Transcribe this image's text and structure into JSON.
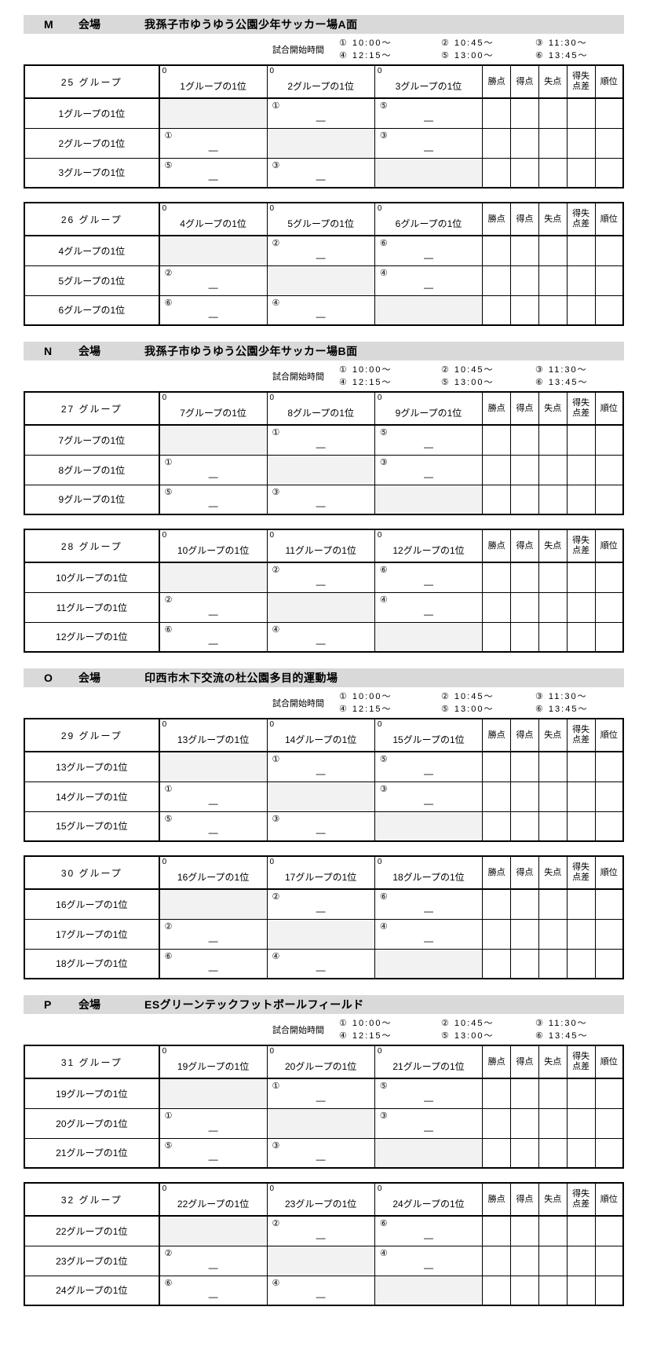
{
  "colors": {
    "bar_bg": "#d9d9d9",
    "diag_bg": "#f2f2f2",
    "border": "#000000"
  },
  "venue_label": "会場",
  "zero": "0",
  "dash": "—",
  "schedule": {
    "label": "試合開始時間",
    "rows": [
      [
        "① 10:00～",
        "② 10:45～",
        "③ 11:30～"
      ],
      [
        "④ 12:15～",
        "⑤ 13:00～",
        "⑥ 13:45～"
      ]
    ]
  },
  "stat_cols": [
    {
      "l1": "勝点",
      "l2": ""
    },
    {
      "l1": "得点",
      "l2": ""
    },
    {
      "l1": "失点",
      "l2": ""
    },
    {
      "l1": "得失",
      "l2": "点差"
    },
    {
      "l1": "順位",
      "l2": ""
    }
  ],
  "sections": [
    {
      "letter": "M",
      "venue": "我孫子市ゆうゆう公園少年サッカー場A面",
      "tables": [
        {
          "name": "25 グループ",
          "teams": [
            "1グループの1位",
            "2グループの1位",
            "3グループの1位"
          ],
          "matches": [
            [
              null,
              "①",
              "⑤"
            ],
            [
              "①",
              null,
              "③"
            ],
            [
              "⑤",
              "③",
              null
            ]
          ]
        },
        {
          "name": "26 グループ",
          "teams": [
            "4グループの1位",
            "5グループの1位",
            "6グループの1位"
          ],
          "matches": [
            [
              null,
              "②",
              "⑥"
            ],
            [
              "②",
              null,
              "④"
            ],
            [
              "⑥",
              "④",
              null
            ]
          ]
        }
      ]
    },
    {
      "letter": "N",
      "venue": "我孫子市ゆうゆう公園少年サッカー場B面",
      "tables": [
        {
          "name": "27 グループ",
          "teams": [
            "7グループの1位",
            "8グループの1位",
            "9グループの1位"
          ],
          "matches": [
            [
              null,
              "①",
              "⑤"
            ],
            [
              "①",
              null,
              "③"
            ],
            [
              "⑤",
              "③",
              null
            ]
          ]
        },
        {
          "name": "28 グループ",
          "teams": [
            "10グループの1位",
            "11グループの1位",
            "12グループの1位"
          ],
          "matches": [
            [
              null,
              "②",
              "⑥"
            ],
            [
              "②",
              null,
              "④"
            ],
            [
              "⑥",
              "④",
              null
            ]
          ]
        }
      ]
    },
    {
      "letter": "O",
      "venue": "印西市木下交流の杜公園多目的運動場",
      "tables": [
        {
          "name": "29 グループ",
          "teams": [
            "13グループの1位",
            "14グループの1位",
            "15グループの1位"
          ],
          "matches": [
            [
              null,
              "①",
              "⑤"
            ],
            [
              "①",
              null,
              "③"
            ],
            [
              "⑤",
              "③",
              null
            ]
          ]
        },
        {
          "name": "30 グループ",
          "teams": [
            "16グループの1位",
            "17グループの1位",
            "18グループの1位"
          ],
          "matches": [
            [
              null,
              "②",
              "⑥"
            ],
            [
              "②",
              null,
              "④"
            ],
            [
              "⑥",
              "④",
              null
            ]
          ]
        }
      ]
    },
    {
      "letter": "P",
      "venue": "ESグリーンテックフットボールフィールド",
      "tables": [
        {
          "name": "31 グループ",
          "teams": [
            "19グループの1位",
            "20グループの1位",
            "21グループの1位"
          ],
          "matches": [
            [
              null,
              "①",
              "⑤"
            ],
            [
              "①",
              null,
              "③"
            ],
            [
              "⑤",
              "③",
              null
            ]
          ]
        },
        {
          "name": "32 グループ",
          "teams": [
            "22グループの1位",
            "23グループの1位",
            "24グループの1位"
          ],
          "matches": [
            [
              null,
              "②",
              "⑥"
            ],
            [
              "②",
              null,
              "④"
            ],
            [
              "⑥",
              "④",
              null
            ]
          ]
        }
      ]
    }
  ]
}
